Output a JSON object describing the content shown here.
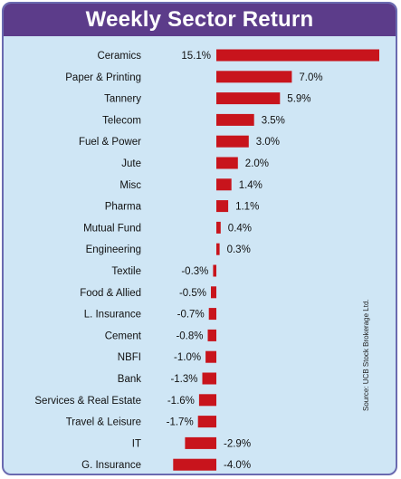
{
  "chart_data": {
    "type": "bar",
    "orientation": "horizontal",
    "title": "Weekly Sector Return",
    "categories": [
      "Ceramics",
      "Paper & Printing",
      "Tannery",
      "Telecom",
      "Fuel & Power",
      "Jute",
      "Misc",
      "Pharma",
      "Mutual Fund",
      "Engineering",
      "Textile",
      "Food & Allied",
      "L. Insurance",
      "Cement",
      "NBFI",
      "Bank",
      "Services & Real Estate",
      "Travel & Leisure",
      "IT",
      "G. Insurance"
    ],
    "values": [
      15.1,
      7.0,
      5.9,
      3.5,
      3.0,
      2.0,
      1.4,
      1.1,
      0.4,
      0.3,
      -0.3,
      -0.5,
      -0.7,
      -0.8,
      -1.0,
      -1.3,
      -1.6,
      -1.7,
      -2.9,
      -4.0
    ],
    "value_labels": [
      "15.1%",
      "7.0%",
      "5.9%",
      "3.5%",
      "3.0%",
      "2.0%",
      "1.4%",
      "1.1%",
      "0.4%",
      "0.3%",
      "-0.3%",
      "-0.5%",
      "-0.7%",
      "-0.8%",
      "-1.0%",
      "-1.3%",
      "-1.6%",
      "-1.7%",
      "-2.9%",
      "-4.0%"
    ],
    "unit": "%",
    "grid": false,
    "legend": "none",
    "source": "Source: UCB Stock Brokerage Ltd."
  },
  "colors": {
    "bar": "#c8141c",
    "background": "#cfe6f5",
    "title_bar": "#5c3c8a",
    "title_text": "#ffffff"
  }
}
